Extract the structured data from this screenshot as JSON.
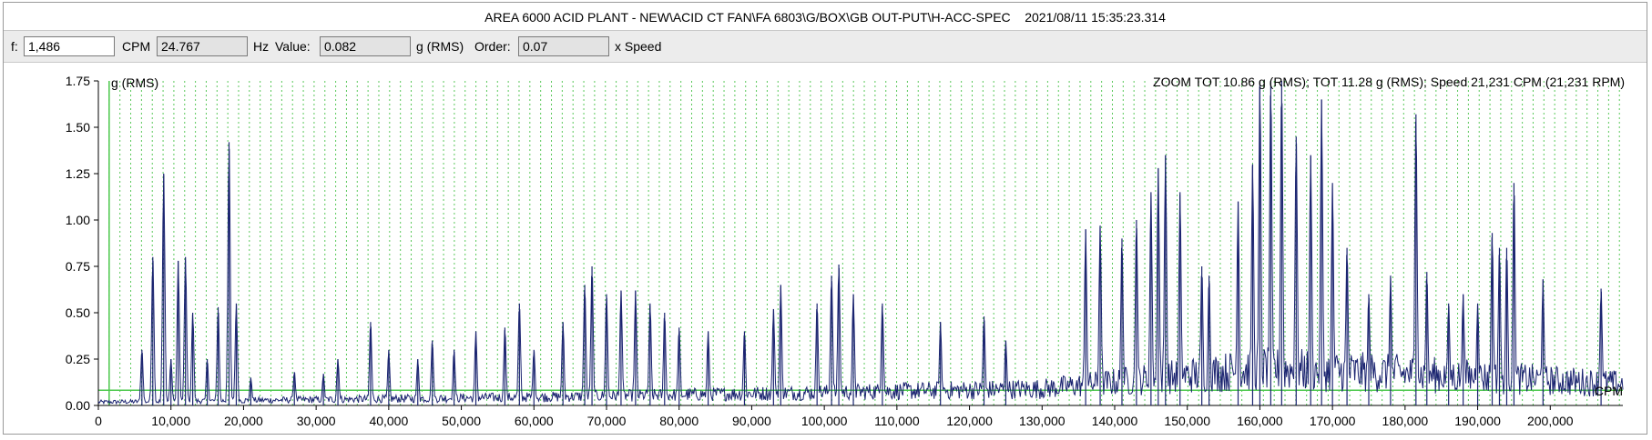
{
  "header": {
    "title": "AREA 6000 ACID PLANT - NEW\\ACID CT FAN\\FA 6803\\G/BOX\\GB OUT-PUT\\H-ACC-SPEC    2021/08/11 15:35:23.314"
  },
  "toolbar": {
    "f_label": "f:",
    "f_value": "1,486",
    "cpm_label": "CPM",
    "hz_value": "24.767",
    "hz_label": "Hz",
    "value_label": "Value:",
    "value_value": "0.082",
    "value_unit": "g (RMS)",
    "order_label": "Order:",
    "order_value": "0.07",
    "order_unit": "x Speed"
  },
  "colors": {
    "trace": "#1b2470",
    "harmonic_lines": "#5ac85a",
    "cursor": "#4cc84c",
    "axis": "#000000"
  },
  "chart_data": {
    "type": "line",
    "title": "",
    "ylabel": "g (RMS)",
    "xlabel": "CPM",
    "annotation": "ZOOM TOT 10.86 g (RMS); TOT 11.28 g (RMS); Speed 21,231 CPM (21,231 RPM)",
    "xlim": [
      0,
      210000
    ],
    "ylim": [
      0,
      1.75
    ],
    "x_ticks": [
      "0",
      "10,000",
      "20,000",
      "30,000",
      "40,000",
      "50,000",
      "60,000",
      "70,000",
      "80,000",
      "90,000",
      "100,000",
      "110,000",
      "120,000",
      "130,000",
      "140,000",
      "150,000",
      "160,000",
      "170,000",
      "180,000",
      "190,000",
      "200,000"
    ],
    "x_tick_values": [
      0,
      10000,
      20000,
      30000,
      40000,
      50000,
      60000,
      70000,
      80000,
      90000,
      100000,
      110000,
      120000,
      130000,
      140000,
      150000,
      160000,
      170000,
      180000,
      190000,
      200000
    ],
    "y_ticks": [
      "0.00",
      "0.25",
      "0.50",
      "0.75",
      "1.00",
      "1.25",
      "1.50",
      "1.75"
    ],
    "y_tick_values": [
      0,
      0.25,
      0.5,
      0.75,
      1.0,
      1.25,
      1.5,
      1.75
    ],
    "harmonic_spacing_cpm": 1486,
    "cursor": {
      "x": 1486,
      "y": 0.082
    },
    "peaks": [
      {
        "x": 6000,
        "y": 0.3
      },
      {
        "x": 7500,
        "y": 0.8
      },
      {
        "x": 9000,
        "y": 1.25
      },
      {
        "x": 10000,
        "y": 0.25
      },
      {
        "x": 11000,
        "y": 0.78
      },
      {
        "x": 12000,
        "y": 0.8
      },
      {
        "x": 13000,
        "y": 0.5
      },
      {
        "x": 15000,
        "y": 0.25
      },
      {
        "x": 16500,
        "y": 0.53
      },
      {
        "x": 18000,
        "y": 1.42
      },
      {
        "x": 19000,
        "y": 0.55
      },
      {
        "x": 21000,
        "y": 0.15
      },
      {
        "x": 27000,
        "y": 0.18
      },
      {
        "x": 31000,
        "y": 0.17
      },
      {
        "x": 33000,
        "y": 0.25
      },
      {
        "x": 37500,
        "y": 0.45
      },
      {
        "x": 40000,
        "y": 0.3
      },
      {
        "x": 44000,
        "y": 0.25
      },
      {
        "x": 46000,
        "y": 0.35
      },
      {
        "x": 49000,
        "y": 0.3
      },
      {
        "x": 52000,
        "y": 0.4
      },
      {
        "x": 56000,
        "y": 0.42
      },
      {
        "x": 58000,
        "y": 0.55
      },
      {
        "x": 60000,
        "y": 0.3
      },
      {
        "x": 64000,
        "y": 0.45
      },
      {
        "x": 67000,
        "y": 0.65
      },
      {
        "x": 68000,
        "y": 0.75
      },
      {
        "x": 70000,
        "y": 0.6
      },
      {
        "x": 72000,
        "y": 0.62
      },
      {
        "x": 74000,
        "y": 0.62
      },
      {
        "x": 76000,
        "y": 0.55
      },
      {
        "x": 78000,
        "y": 0.5
      },
      {
        "x": 80000,
        "y": 0.42
      },
      {
        "x": 84000,
        "y": 0.4
      },
      {
        "x": 89000,
        "y": 0.4
      },
      {
        "x": 93000,
        "y": 0.52
      },
      {
        "x": 94000,
        "y": 0.65
      },
      {
        "x": 99000,
        "y": 0.55
      },
      {
        "x": 101000,
        "y": 0.7
      },
      {
        "x": 102000,
        "y": 0.76
      },
      {
        "x": 104000,
        "y": 0.6
      },
      {
        "x": 108000,
        "y": 0.55
      },
      {
        "x": 116000,
        "y": 0.45
      },
      {
        "x": 122000,
        "y": 0.48
      },
      {
        "x": 125000,
        "y": 0.35
      },
      {
        "x": 136000,
        "y": 0.95
      },
      {
        "x": 138000,
        "y": 0.97
      },
      {
        "x": 141000,
        "y": 0.9
      },
      {
        "x": 143000,
        "y": 1.0
      },
      {
        "x": 145000,
        "y": 1.15
      },
      {
        "x": 146000,
        "y": 1.28
      },
      {
        "x": 147000,
        "y": 1.35
      },
      {
        "x": 149000,
        "y": 1.15
      },
      {
        "x": 152000,
        "y": 0.75
      },
      {
        "x": 153000,
        "y": 0.7
      },
      {
        "x": 157000,
        "y": 1.1
      },
      {
        "x": 159000,
        "y": 1.3
      },
      {
        "x": 160000,
        "y": 1.75
      },
      {
        "x": 161500,
        "y": 1.75
      },
      {
        "x": 163000,
        "y": 1.75
      },
      {
        "x": 165000,
        "y": 1.45
      },
      {
        "x": 167000,
        "y": 1.35
      },
      {
        "x": 168500,
        "y": 1.65
      },
      {
        "x": 170000,
        "y": 1.2
      },
      {
        "x": 172000,
        "y": 0.85
      },
      {
        "x": 175000,
        "y": 0.6
      },
      {
        "x": 178000,
        "y": 0.7
      },
      {
        "x": 181500,
        "y": 1.57
      },
      {
        "x": 183000,
        "y": 0.72
      },
      {
        "x": 186000,
        "y": 0.55
      },
      {
        "x": 188000,
        "y": 0.6
      },
      {
        "x": 190000,
        "y": 0.55
      },
      {
        "x": 192000,
        "y": 0.93
      },
      {
        "x": 193000,
        "y": 0.85
      },
      {
        "x": 194000,
        "y": 0.85
      },
      {
        "x": 195000,
        "y": 1.2
      },
      {
        "x": 199000,
        "y": 0.68
      },
      {
        "x": 207000,
        "y": 0.63
      }
    ]
  }
}
